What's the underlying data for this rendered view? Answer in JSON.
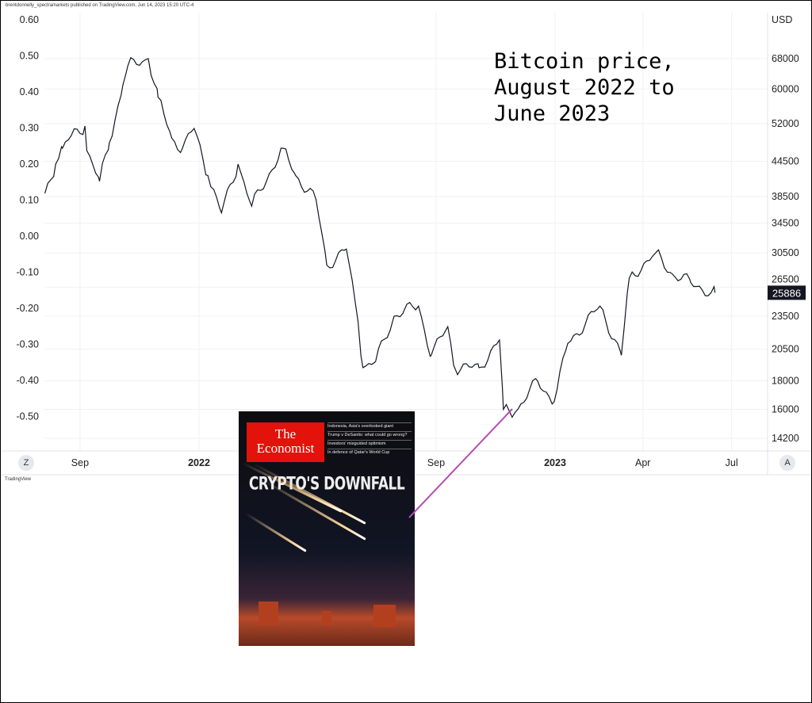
{
  "header": {
    "published": "brentdonnelly_spectramarkets published on TradingView.com, Jun 14, 2023 15:20 UTC-4",
    "currency": "USD"
  },
  "annotation": {
    "title": "Bitcoin price,\nAugust 2022 to\nJune 2023"
  },
  "buttons": {
    "zoom_label": "Z",
    "auto_label": "A"
  },
  "footer": {
    "logo": "TradingView"
  },
  "colors": {
    "price_line": "#131722",
    "annotation_line": "#b44cb4",
    "last_price_badge": "#131722"
  },
  "cover": {
    "brand": "The Economist",
    "headlines": [
      "Indonesia, Asia's overlooked giant",
      "Trump v DeSantis: what could go wrong?",
      "Investors' misguided optimism",
      "In defence of Qatar's World Cup"
    ],
    "main_headline": "CRYPTO'S DOWNFALL"
  },
  "chart_data": {
    "type": "line",
    "title": "Bitcoin price, August 2022 to June 2023",
    "y_scale": "log",
    "grid": true,
    "last_price": "25886",
    "x_ticks": [
      "Sep",
      "2022",
      "Sep",
      "2023",
      "Apr",
      "Jul"
    ],
    "x_tick_dates": [
      "2021-09-01",
      "2022-01-01",
      "2022-09-01",
      "2023-01-01",
      "2023-04-01",
      "2023-07-01"
    ],
    "x_range": [
      "2021-07-27",
      "2023-08-10"
    ],
    "right_ticks": [
      68000,
      60000,
      52000,
      44500,
      38500,
      34500,
      30500,
      26500,
      23500,
      20500,
      18000,
      16000,
      14200
    ],
    "left_ticks": [
      "0.60",
      "0.50",
      "0.40",
      "0.30",
      "0.20",
      "0.10",
      "0.00",
      "-0.10",
      "-0.20",
      "-0.30",
      "-0.40",
      "-0.50"
    ],
    "y_range": [
      13200,
      80000
    ],
    "series": [
      {
        "dates": [
          "2021-07-27",
          "2021-08-07",
          "2021-08-14",
          "2021-08-23",
          "2021-09-06",
          "2021-09-08",
          "2021-09-21",
          "2021-10-01",
          "2021-10-15",
          "2021-10-20",
          "2021-11-10",
          "2021-11-20",
          "2021-12-04",
          "2021-12-15",
          "2021-12-27",
          "2022-01-10",
          "2022-01-24",
          "2022-02-10",
          "2022-02-24",
          "2022-03-28",
          "2022-04-10",
          "2022-05-01",
          "2022-05-12",
          "2022-06-01",
          "2022-06-13",
          "2022-06-18",
          "2022-07-01",
          "2022-07-20",
          "2022-07-30",
          "2022-08-14",
          "2022-08-27",
          "2022-09-13",
          "2022-09-20",
          "2022-10-15",
          "2022-11-05",
          "2022-11-09",
          "2022-11-21",
          "2022-12-14",
          "2022-12-31",
          "2023-01-14",
          "2023-02-16",
          "2023-03-10",
          "2023-03-18",
          "2023-04-14",
          "2023-05-01",
          "2023-05-20",
          "2023-06-10",
          "2023-06-14"
        ],
        "values": [
          39000,
          44000,
          47000,
          49500,
          51500,
          46500,
          41000,
          48000,
          61000,
          66000,
          68000,
          58000,
          49000,
          47000,
          51000,
          42000,
          36000,
          44000,
          37000,
          47000,
          42000,
          38000,
          29000,
          31000,
          23000,
          19000,
          19500,
          23500,
          24000,
          24500,
          20000,
          22500,
          19000,
          19000,
          21300,
          16000,
          15800,
          18000,
          16500,
          21000,
          24500,
          20000,
          27500,
          30500,
          28000,
          27000,
          25900,
          25886
        ]
      }
    ]
  }
}
